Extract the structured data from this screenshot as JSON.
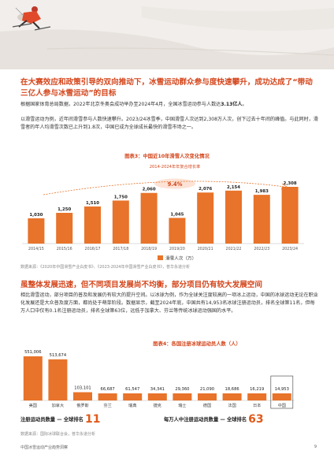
{
  "heading1_a": "在大赛效应和政策引导的双向推动下，冰雪运动群众参与度快速攀升，成功达成了",
  "heading1_quote": "“带动三亿人参与冰雪运动”",
  "heading1_b": "的目标",
  "para1_a": "根据国家体育总局数据，2022年北京冬奥会成功举办至2024年4月，全国冰雪运动参与人数达",
  "para1_b": "3.13亿人",
  "para1_c": "。",
  "para2": "以滑雪运动为例，近年间滑雪参与人数快速攀升。2023/24冰雪季，中国滑雪人次达到2,308万人次，创下过去十年间的峰值。与此同时，滑雪者的年人均滑雪次数已上升到1.8次，中国已成为全球成长最快的滑雪市场之一。",
  "chart_data": [
    {
      "type": "bar",
      "title": "图表3：中国近10年滑雪人次变化情况",
      "categories": [
        "2014/15",
        "2015/16",
        "2016/17",
        "2017/18",
        "2018/19",
        "2019/20",
        "2020/21",
        "2021/22",
        "2022/23",
        "2023/24"
      ],
      "series": [
        {
          "name": "滑雪人次（万）",
          "values": [
            1030,
            1250,
            1510,
            1750,
            2060,
            1045,
            2076,
            2154,
            1983,
            2308
          ]
        }
      ],
      "data_labels": [
        "1,030",
        "1,250",
        "1,510",
        "1,750",
        "2,060",
        "1,045",
        "2,076",
        "2,154",
        "1,983",
        "2,308"
      ],
      "annotation_title": "2014-2024年年复合增长率",
      "annotation_value": "9.4%",
      "ylim": [
        0,
        2600
      ],
      "legend": "bottom"
    },
    {
      "type": "bar",
      "title": "图表4：各国注册冰球运动员人数（人）",
      "categories": [
        "美国",
        "加拿大",
        "俄罗斯",
        "芬兰",
        "瑞典",
        "捷克",
        "瑞士",
        "德国",
        "法国",
        "日本",
        "中国"
      ],
      "values": [
        551006,
        513674,
        103101,
        66687,
        61547,
        34341,
        29360,
        21090,
        18686,
        16219,
        14953
      ],
      "data_labels": [
        "551,006",
        "513,674",
        "103,101",
        "66,687",
        "61,547",
        "34,341",
        "29,360",
        "21,090",
        "18,686",
        "16,219",
        "14,953"
      ],
      "highlight": "中国",
      "ylim": [
        0,
        600000
      ]
    }
  ],
  "source1": "数据来源：《2020年中国滑雪产业白皮书》、《2023-2024年中国滑雪产业白皮书》，普华永道分析",
  "heading2": "虽整体发展迅速，但不同项目发展尚不均衡，部分项目仍有较大发展空间",
  "para3": "相比滑雪运动，部分项目的普及和发展仍有较大的提升空间。以冰球为例，作为全球关注度较高的一项冰上运动，中国的冰球运动无论在职业化发展还是大众普及度方面，都尚处于萌芽阶段。数据显示，截至2024年底，中国共有14,953名冰球注册运动员，排名全球第11名，但每万人口中仅有0.1名注册运动员，排名全球第63位，远低于加拿大、芬兰等传统冰球运动强国的水平。",
  "stat1_label": "注册运动员数量 — 全球排名",
  "stat1_value": "11",
  "stat2_label": "每万人中注册运动员数量 — 全球排名",
  "stat2_value": "63",
  "source2": "数据来源：国际冰球联合会，普华永道分析",
  "footer": "中国冰雪运动产业趋势洞察",
  "page_number": "9",
  "colors": {
    "accent": "#d4451b",
    "bar": "#e8732a",
    "highlight_border": "#555555"
  }
}
